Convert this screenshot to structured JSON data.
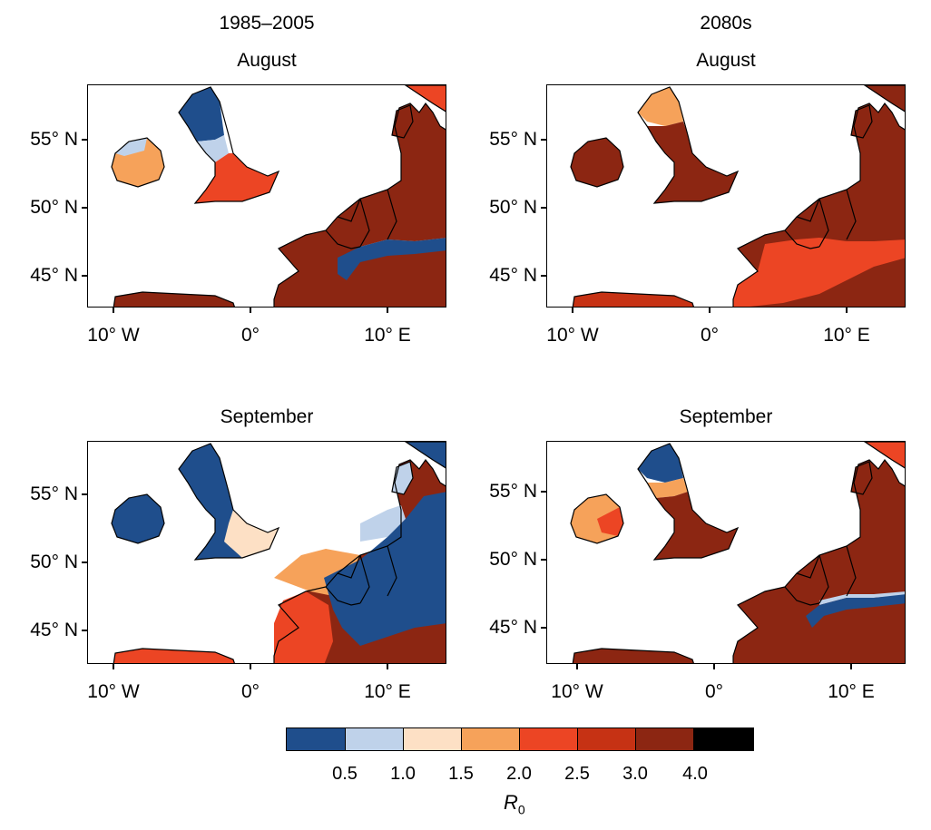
{
  "columns": [
    {
      "title": "1985–2005"
    },
    {
      "title": "2080s"
    }
  ],
  "panels": [
    {
      "title": "August",
      "period": "1985–2005",
      "month": "August"
    },
    {
      "title": "August",
      "period": "2080s",
      "month": "August"
    },
    {
      "title": "September",
      "period": "1985–2005",
      "month": "September"
    },
    {
      "title": "September",
      "period": "2080s",
      "month": "September"
    }
  ],
  "axes": {
    "lat_ticks": [
      "55° N",
      "50° N",
      "45° N"
    ],
    "lon_ticks": [
      "10° W",
      "0°",
      "10° E"
    ],
    "lat_values": [
      55,
      50,
      45
    ],
    "lon_values": [
      -10,
      0,
      10
    ]
  },
  "colorbar": {
    "title": "R",
    "title_sub": "0",
    "labels": [
      "0.5",
      "1.0",
      "1.5",
      "2.0",
      "2.5",
      "3.0",
      "4.0"
    ],
    "colors": [
      "#1f4e8c",
      "#bfd2ea",
      "#fde0c5",
      "#f6a25a",
      "#ec4524",
      "#c63214",
      "#8c2612",
      "#000000"
    ]
  },
  "colors": {
    "land_high": "#8c2612",
    "land_mid": "#c63214",
    "land_orange": "#ec4524",
    "land_light_orange": "#f6a25a",
    "land_cream": "#fde0c5",
    "land_light_blue": "#bfd2ea",
    "land_blue": "#1f4e8c"
  }
}
